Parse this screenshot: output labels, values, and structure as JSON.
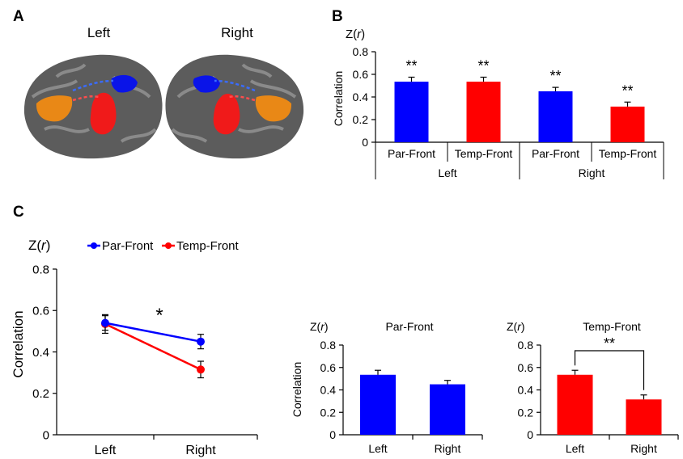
{
  "panel_labels": {
    "a": "A",
    "b": "B",
    "c": "C"
  },
  "brain": {
    "left_label": "Left",
    "right_label": "Right",
    "colors": {
      "cortex": "#5c5c5c",
      "cortex_light": "#8a8a8a",
      "parietal": "#0a14e8",
      "temporal": "#f01a1a",
      "frontal": "#e98816"
    }
  },
  "colors": {
    "par_front": "#0000ff",
    "temp_front": "#ff0000",
    "axis": "#000000"
  },
  "chart_data": [
    {
      "panel": "B",
      "type": "bar",
      "ylabel_unit": "Z(r)",
      "ylabel": "Correlation",
      "ylim": [
        0,
        0.8
      ],
      "yticks": [
        "0",
        "0.2",
        "0.4",
        "0.6",
        "0.8"
      ],
      "categories": [
        "Par-Front",
        "Temp-Front",
        "Par-Front",
        "Temp-Front"
      ],
      "groups": [
        "Left",
        "Right"
      ],
      "values": [
        0.535,
        0.535,
        0.45,
        0.315
      ],
      "errors": [
        0.04,
        0.04,
        0.035,
        0.04
      ],
      "colors": [
        "#0000ff",
        "#ff0000",
        "#0000ff",
        "#ff0000"
      ],
      "significance": [
        "**",
        "**",
        "**",
        "**"
      ]
    },
    {
      "panel": "C",
      "type": "line",
      "ylabel_unit": "Z(r)",
      "ylabel": "Correlation",
      "ylim": [
        0,
        0.8
      ],
      "yticks": [
        "0",
        "0.2",
        "0.4",
        "0.6",
        "0.8"
      ],
      "categories": [
        "Left",
        "Right"
      ],
      "series": [
        {
          "name": "Par-Front",
          "values": [
            0.54,
            0.45
          ],
          "errors": [
            0.035,
            0.035
          ],
          "color": "#0000ff"
        },
        {
          "name": "Temp-Front",
          "values": [
            0.535,
            0.315
          ],
          "errors": [
            0.045,
            0.04
          ],
          "color": "#ff0000"
        }
      ],
      "annotation": "*"
    },
    {
      "panel": "C",
      "type": "bar",
      "title": "Par-Front",
      "ylabel_unit": "Z(r)",
      "ylabel": "Correlation",
      "ylim": [
        0,
        0.8
      ],
      "yticks": [
        "0",
        "0.2",
        "0.4",
        "0.6",
        "0.8"
      ],
      "categories": [
        "Left",
        "Right"
      ],
      "values": [
        0.535,
        0.45
      ],
      "errors": [
        0.04,
        0.035
      ],
      "color": "#0000ff"
    },
    {
      "panel": "C",
      "type": "bar",
      "title": "Temp-Front",
      "ylabel_unit": "Z(r)",
      "ylim": [
        0,
        0.8
      ],
      "yticks": [
        "0",
        "0.2",
        "0.4",
        "0.6",
        "0.8"
      ],
      "categories": [
        "Left",
        "Right"
      ],
      "values": [
        0.535,
        0.315
      ],
      "errors": [
        0.04,
        0.04
      ],
      "color": "#ff0000",
      "significance": "**"
    }
  ]
}
